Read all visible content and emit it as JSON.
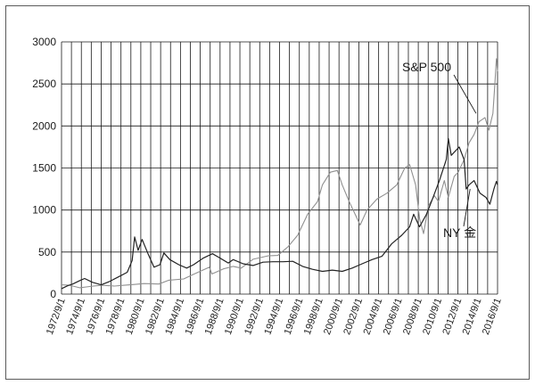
{
  "chart_data": {
    "type": "line",
    "title": "",
    "xlabel": "",
    "ylabel": "",
    "ylim": [
      0,
      3000
    ],
    "xlim": [
      1972.67,
      2016.67
    ],
    "y_ticks": [
      "0",
      "500",
      "1000",
      "1500",
      "2000",
      "2500",
      "3000"
    ],
    "x_ticks": [
      "1972/9/1",
      "1974/9/1",
      "1976/9/1",
      "1978/9/1",
      "1980/9/1",
      "1982/9/1",
      "1984/9/1",
      "1986/9/1",
      "1988/9/1",
      "1990/9/1",
      "1992/9/1",
      "1994/9/1",
      "1996/9/1",
      "1998/9/1",
      "2000/9/1",
      "2002/9/1",
      "2004/9/1",
      "2006/9/1",
      "2008/9/1",
      "2010/9/1",
      "2012/9/1",
      "2014/9/1",
      "2016/9/1"
    ],
    "grid": true,
    "series": [
      {
        "name": "S&P 500",
        "color": "#909090",
        "points": [
          [
            1972.67,
            110
          ],
          [
            1973.5,
            105
          ],
          [
            1974.5,
            75
          ],
          [
            1975.5,
            90
          ],
          [
            1976.67,
            105
          ],
          [
            1978,
            95
          ],
          [
            1979,
            105
          ],
          [
            1980,
            115
          ],
          [
            1981,
            125
          ],
          [
            1982.5,
            120
          ],
          [
            1983.5,
            165
          ],
          [
            1985,
            180
          ],
          [
            1986,
            235
          ],
          [
            1987.6,
            320
          ],
          [
            1987.85,
            240
          ],
          [
            1989,
            300
          ],
          [
            1990,
            330
          ],
          [
            1990.8,
            310
          ],
          [
            1992,
            415
          ],
          [
            1993.5,
            455
          ],
          [
            1994.5,
            460
          ],
          [
            1995.5,
            560
          ],
          [
            1996.5,
            700
          ],
          [
            1997.5,
            950
          ],
          [
            1998.5,
            1100
          ],
          [
            1999,
            1300
          ],
          [
            1999.8,
            1450
          ],
          [
            2000.5,
            1470
          ],
          [
            2001,
            1300
          ],
          [
            2001.7,
            1100
          ],
          [
            2002.5,
            900
          ],
          [
            2002.8,
            820
          ],
          [
            2003.5,
            1000
          ],
          [
            2004.5,
            1130
          ],
          [
            2005.5,
            1200
          ],
          [
            2006.5,
            1300
          ],
          [
            2007.3,
            1500
          ],
          [
            2007.8,
            1540
          ],
          [
            2008.4,
            1300
          ],
          [
            2008.8,
            900
          ],
          [
            2009.2,
            720
          ],
          [
            2009.7,
            1050
          ],
          [
            2010.3,
            1170
          ],
          [
            2010.7,
            1100
          ],
          [
            2011.3,
            1350
          ],
          [
            2011.7,
            1150
          ],
          [
            2012.3,
            1400
          ],
          [
            2012.7,
            1450
          ],
          [
            2013.3,
            1600
          ],
          [
            2013.8,
            1800
          ],
          [
            2014.3,
            1900
          ],
          [
            2014.8,
            2050
          ],
          [
            2015.4,
            2100
          ],
          [
            2015.8,
            1950
          ],
          [
            2016.2,
            2150
          ],
          [
            2016.4,
            2500
          ],
          [
            2016.55,
            2800
          ],
          [
            2016.67,
            2650
          ]
        ]
      },
      {
        "name": "NY 金",
        "color": "#222222",
        "points": [
          [
            1972.67,
            65
          ],
          [
            1973.3,
            100
          ],
          [
            1973.8,
            120
          ],
          [
            1974.5,
            160
          ],
          [
            1975,
            185
          ],
          [
            1975.8,
            140
          ],
          [
            1976.67,
            110
          ],
          [
            1977.5,
            150
          ],
          [
            1978.5,
            210
          ],
          [
            1979.3,
            260
          ],
          [
            1979.8,
            400
          ],
          [
            1980.05,
            680
          ],
          [
            1980.4,
            520
          ],
          [
            1980.8,
            650
          ],
          [
            1981.4,
            480
          ],
          [
            1982.0,
            320
          ],
          [
            1982.6,
            350
          ],
          [
            1983.0,
            490
          ],
          [
            1983.6,
            410
          ],
          [
            1984.5,
            350
          ],
          [
            1985.3,
            310
          ],
          [
            1986,
            350
          ],
          [
            1987,
            430
          ],
          [
            1987.9,
            480
          ],
          [
            1988.5,
            440
          ],
          [
            1989.5,
            370
          ],
          [
            1990,
            410
          ],
          [
            1991,
            360
          ],
          [
            1992,
            340
          ],
          [
            1993,
            380
          ],
          [
            1994,
            385
          ],
          [
            1995,
            385
          ],
          [
            1996,
            390
          ],
          [
            1997,
            330
          ],
          [
            1998,
            295
          ],
          [
            1999,
            270
          ],
          [
            2000,
            285
          ],
          [
            2001,
            270
          ],
          [
            2002,
            310
          ],
          [
            2003,
            360
          ],
          [
            2004,
            410
          ],
          [
            2005,
            450
          ],
          [
            2006,
            600
          ],
          [
            2006.5,
            650
          ],
          [
            2007,
            700
          ],
          [
            2007.8,
            800
          ],
          [
            2008.2,
            950
          ],
          [
            2008.8,
            800
          ],
          [
            2009.5,
            950
          ],
          [
            2010,
            1100
          ],
          [
            2010.8,
            1350
          ],
          [
            2011.5,
            1600
          ],
          [
            2011.7,
            1850
          ],
          [
            2012,
            1650
          ],
          [
            2012.8,
            1750
          ],
          [
            2013.3,
            1600
          ],
          [
            2013.5,
            1250
          ],
          [
            2013.8,
            1300
          ],
          [
            2014.3,
            1350
          ],
          [
            2014.9,
            1200
          ],
          [
            2015.5,
            1150
          ],
          [
            2015.9,
            1070
          ],
          [
            2016.3,
            1250
          ],
          [
            2016.55,
            1340
          ],
          [
            2016.67,
            1300
          ]
        ]
      }
    ],
    "annotations": [
      {
        "text": "S&P 500",
        "series": "S&P 500"
      },
      {
        "text": "NY 金",
        "series": "NY 金"
      }
    ]
  }
}
